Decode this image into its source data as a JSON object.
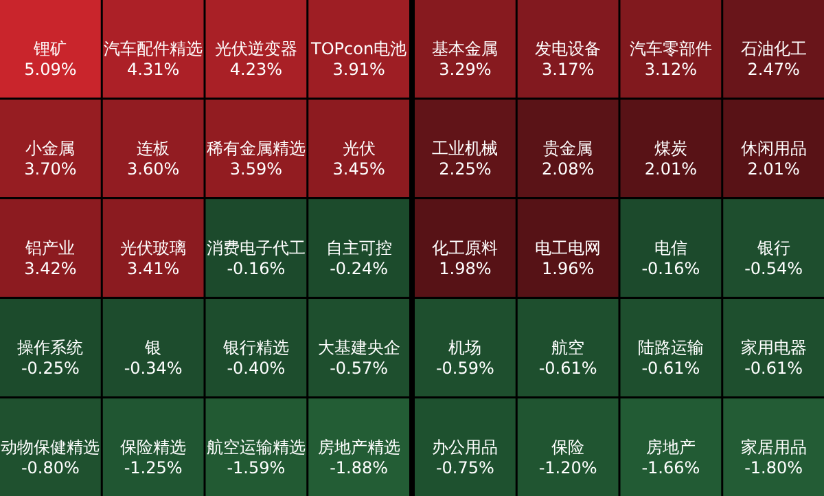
{
  "chart_data": [
    {
      "type": "other",
      "categories": [
        "锂矿",
        "汽车配件精选",
        "光伏逆变器",
        "TOPcon电池",
        "小金属",
        "连板",
        "稀有金属精选",
        "光伏",
        "铝产业",
        "光伏玻璃",
        "消费电子代工",
        "自主可控",
        "操作系统",
        "银",
        "银行精选",
        "大基建央企",
        "动物保健精选",
        "保险精选",
        "航空运输精选",
        "房地产精选"
      ],
      "values": [
        5.09,
        4.31,
        4.23,
        3.91,
        3.7,
        3.6,
        3.59,
        3.45,
        3.42,
        3.41,
        -0.16,
        -0.24,
        -0.25,
        -0.34,
        -0.4,
        -0.57,
        -0.8,
        -1.25,
        -1.59,
        -1.88
      ],
      "value_labels": [
        "5.09%",
        "4.31%",
        "4.23%",
        "3.91%",
        "3.70%",
        "3.60%",
        "3.59%",
        "3.45%",
        "3.42%",
        "3.41%",
        "-0.16%",
        "-0.24%",
        "-0.25%",
        "-0.34%",
        "-0.40%",
        "-0.57%",
        "-0.80%",
        "-1.25%",
        "-1.59%",
        "-1.88%"
      ]
    },
    {
      "type": "other",
      "categories": [
        "基本金属",
        "发电设备",
        "汽车零部件",
        "石油化工",
        "工业机械",
        "贵金属",
        "煤炭",
        "休闲用品",
        "化工原料",
        "电工电网",
        "电信",
        "银行",
        "机场",
        "航空",
        "陆路运输",
        "家用电器",
        "办公用品",
        "保险",
        "房地产",
        "家居用品"
      ],
      "values": [
        3.29,
        3.17,
        3.12,
        2.47,
        2.25,
        2.08,
        2.01,
        2.01,
        1.98,
        1.96,
        -0.16,
        -0.54,
        -0.59,
        -0.61,
        -0.61,
        -0.61,
        -0.75,
        -1.2,
        -1.66,
        -1.8
      ],
      "value_labels": [
        "3.29%",
        "3.17%",
        "3.12%",
        "2.47%",
        "2.25%",
        "2.08%",
        "2.01%",
        "2.01%",
        "1.98%",
        "1.96%",
        "-0.16%",
        "-0.54%",
        "-0.59%",
        "-0.61%",
        "-0.61%",
        "-0.61%",
        "-0.75%",
        "-1.20%",
        "-1.66%",
        "-1.80%"
      ]
    }
  ]
}
